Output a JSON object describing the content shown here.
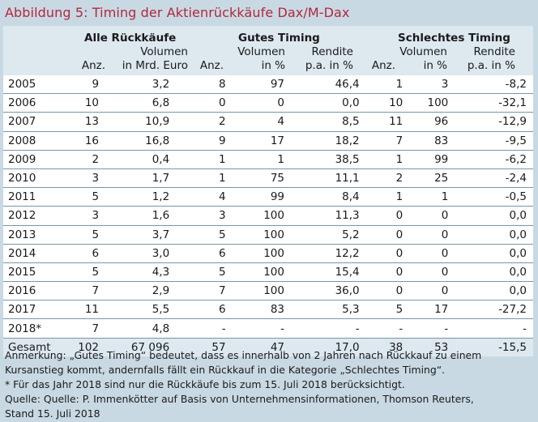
{
  "title": "Abbildung 5: Timing der Aktienrückkäufe Dax/M-Dax",
  "groups": {
    "all": "Alle Rückkäufe",
    "good": "Gutes Timing",
    "bad": "Schlechtes Timing"
  },
  "subheaders": {
    "anz": "Anz.",
    "volumen": "Volumen",
    "in_mrd_euro": "in Mrd. Euro",
    "volumen_pct_1": "Volumen",
    "volumen_pct_2": "in %",
    "rendite_1": "Rendite",
    "rendite_2": "p.a. in %"
  },
  "rows": [
    [
      "2005",
      "9",
      "3,2",
      "8",
      "97",
      "46,4",
      "1",
      "3",
      "-8,2"
    ],
    [
      "2006",
      "10",
      "6,8",
      "0",
      "0",
      "0,0",
      "10",
      "100",
      "-32,1"
    ],
    [
      "2007",
      "13",
      "10,9",
      "2",
      "4",
      "8,5",
      "11",
      "96",
      "-12,9"
    ],
    [
      "2008",
      "16",
      "16,8",
      "9",
      "17",
      "18,2",
      "7",
      "83",
      "-9,5"
    ],
    [
      "2009",
      "2",
      "0,4",
      "1",
      "1",
      "38,5",
      "1",
      "99",
      "-6,2"
    ],
    [
      "2010",
      "3",
      "1,7",
      "1",
      "75",
      "11,1",
      "2",
      "25",
      "-2,4"
    ],
    [
      "2011",
      "5",
      "1,2",
      "4",
      "99",
      "8,4",
      "1",
      "1",
      "-0,5"
    ],
    [
      "2012",
      "3",
      "1,6",
      "3",
      "100",
      "11,3",
      "0",
      "0",
      "0,0"
    ],
    [
      "2013",
      "5",
      "3,7",
      "5",
      "100",
      "5,2",
      "0",
      "0",
      "0,0"
    ],
    [
      "2014",
      "6",
      "3,0",
      "6",
      "100",
      "12,2",
      "0",
      "0",
      "0,0"
    ],
    [
      "2015",
      "5",
      "4,3",
      "5",
      "100",
      "15,4",
      "0",
      "0",
      "0,0"
    ],
    [
      "2016",
      "7",
      "2,9",
      "7",
      "100",
      "36,0",
      "0",
      "0",
      "0,0"
    ],
    [
      "2017",
      "11",
      "5,5",
      "6",
      "83",
      "5,3",
      "5",
      "17",
      "-27,2"
    ],
    [
      "2018*",
      "7",
      "4,8",
      "-",
      "-",
      "-",
      "-",
      "-",
      "-"
    ]
  ],
  "total": [
    "Gesamt",
    "102",
    "67 096",
    "57",
    "47",
    "17,0",
    "38",
    "53",
    "-15,5"
  ],
  "notes": {
    "line1": "Anmerkung: „Gutes Timing“ bedeutet, dass es innerhalb von 2 Jahren nach Rückkauf zu einem",
    "line2": "Kursanstieg kommt, andernfalls fällt ein Rückkauf in die Kategorie „Schlechtes Timing“.",
    "line3": "* Für das Jahr 2018 sind nur die Rückkäufe bis zum 15. Juli 2018 berücksichtigt.",
    "line4": "Quelle: Quelle: P. Immenkötter auf Basis von Unternehmensinformationen, Thomson Reuters,",
    "line5": "Stand 15. Juli 2018"
  }
}
